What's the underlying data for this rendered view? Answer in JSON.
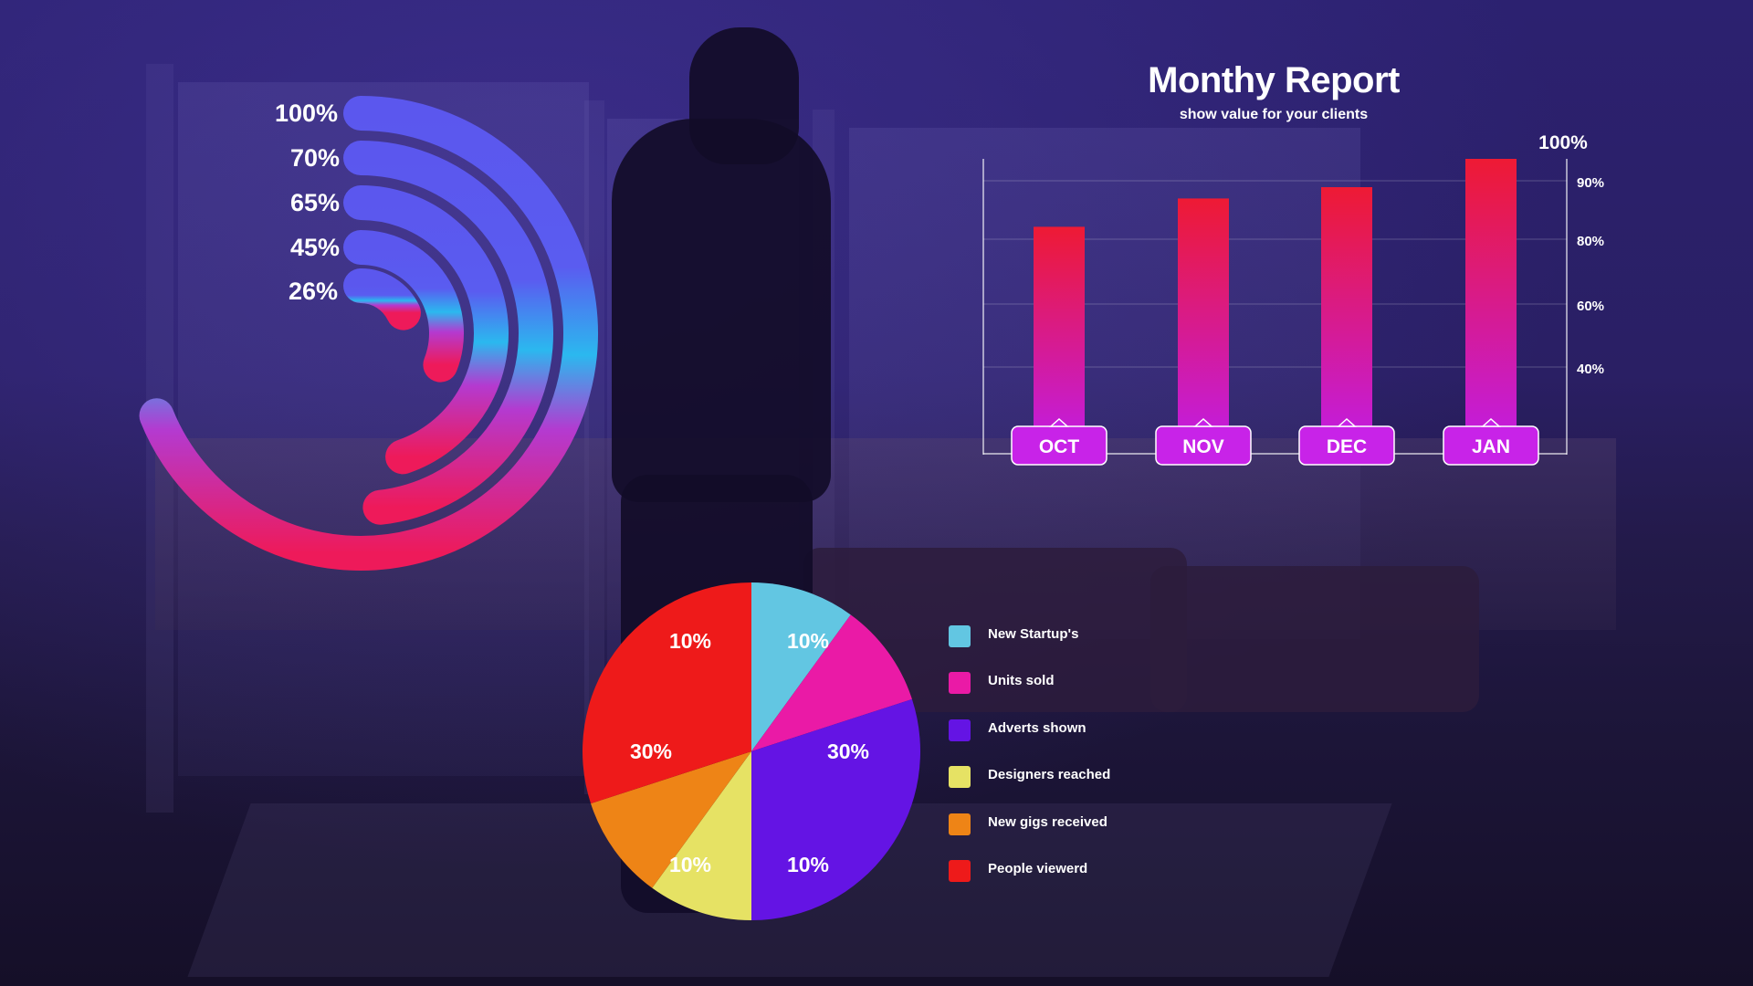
{
  "report": {
    "title": "Monthy Report",
    "subtitle": "show value for your clients"
  },
  "colors": {
    "bar_top": "#ee1a34",
    "bar_bottom": "#c21ce0",
    "ring_cool": "#5b57ee",
    "ring_cyan": "#1cc8ef",
    "ring_warm": "#ee1a5a",
    "pill": "#c823e8"
  },
  "chart_data": [
    {
      "type": "radial_bar",
      "labels": [
        "100%",
        "70%",
        "65%",
        "45%",
        "26%"
      ],
      "values": [
        100,
        70,
        65,
        45,
        26
      ]
    },
    {
      "type": "bar",
      "categories": [
        "OCT",
        "NOV",
        "DEC",
        "JAN"
      ],
      "values": [
        76,
        86,
        90,
        100
      ],
      "ylim": [
        0,
        100
      ],
      "ytick_labels": [
        "100%",
        "90%",
        "80%",
        "60%",
        "40%"
      ],
      "grid": true
    },
    {
      "type": "pie",
      "slices": [
        {
          "name": "New Startup's",
          "label": "10%",
          "value": 10,
          "color": "#62c6e2"
        },
        {
          "name": "Units sold",
          "label": "10%",
          "value": 10,
          "color": "#ea1aa6"
        },
        {
          "name": "Adverts shown",
          "label": "30%",
          "value": 30,
          "color": "#6414e4"
        },
        {
          "name": "Designers reached",
          "label": "10%",
          "value": 10,
          "color": "#e6e264"
        },
        {
          "name": "New gigs received",
          "label": "10%",
          "value": 10,
          "color": "#ee8416"
        },
        {
          "name": "People viewerd",
          "label": "30%",
          "value": 30,
          "color": "#ee1a1a"
        }
      ]
    }
  ]
}
